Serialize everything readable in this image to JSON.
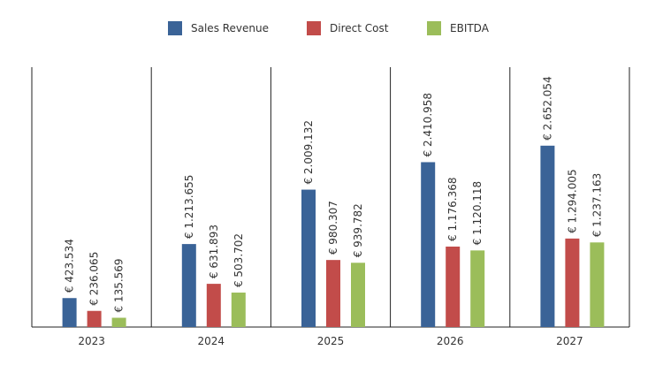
{
  "chart_data": {
    "type": "bar",
    "categories": [
      "2023",
      "2024",
      "2025",
      "2026",
      "2027"
    ],
    "series": [
      {
        "name": "Sales Revenue",
        "color": "#3a6397",
        "values": [
          423534,
          1213655,
          2009132,
          2410958,
          2652054
        ],
        "labels": [
          "€ 423.534",
          "€ 1.213.655",
          "€ 2.009.132",
          "€ 2.410.958",
          "€ 2.652.054"
        ]
      },
      {
        "name": "Direct Cost",
        "color": "#c24c4a",
        "values": [
          236065,
          631893,
          980307,
          1176368,
          1294005
        ],
        "labels": [
          "€ 236.065",
          "€ 631.893",
          "€ 980.307",
          "€ 1.176.368",
          "€ 1.294.005"
        ]
      },
      {
        "name": "EBITDA",
        "color": "#9bbd5a",
        "values": [
          135569,
          503702,
          939782,
          1120118,
          1237163
        ],
        "labels": [
          "€ 135.569",
          "€ 503.702",
          "€ 939.782",
          "€ 1.120.118",
          "€ 1.237.163"
        ]
      }
    ],
    "legend_position": "top-center",
    "grid": false,
    "vertical_separators": true,
    "ylim": [
      0,
      3800000
    ]
  }
}
